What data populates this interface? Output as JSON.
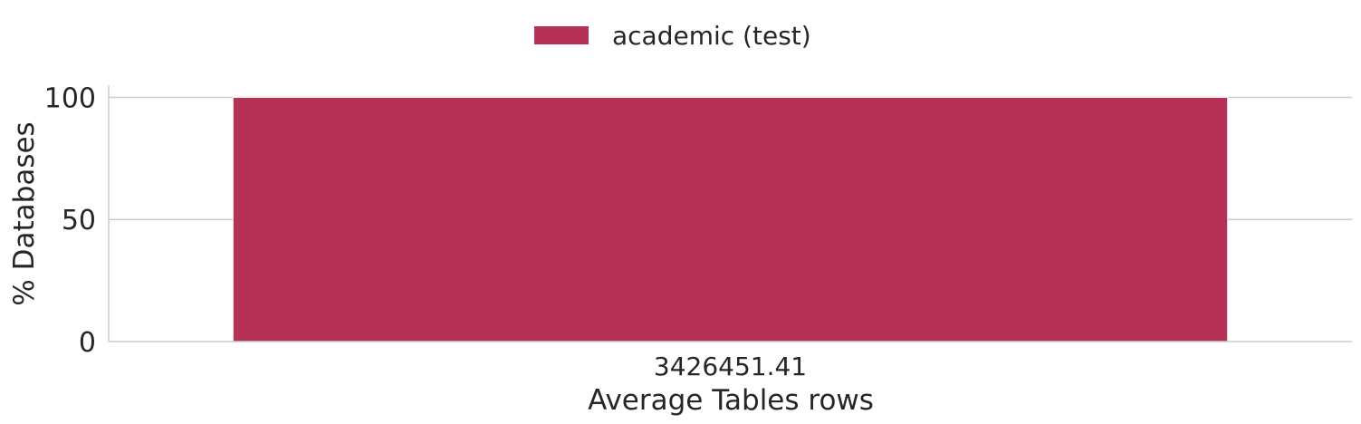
{
  "chart_data": {
    "type": "bar",
    "categories": [
      "3426451.41"
    ],
    "series": [
      {
        "name": "academic (test)",
        "values": [
          100
        ],
        "color": "#b63156"
      }
    ],
    "xlabel": "Average Tables rows",
    "ylabel": "% Databases",
    "ylim": [
      0,
      105
    ],
    "yticks": [
      0,
      50,
      100
    ],
    "grid": "y",
    "legend_position": "top-center"
  }
}
